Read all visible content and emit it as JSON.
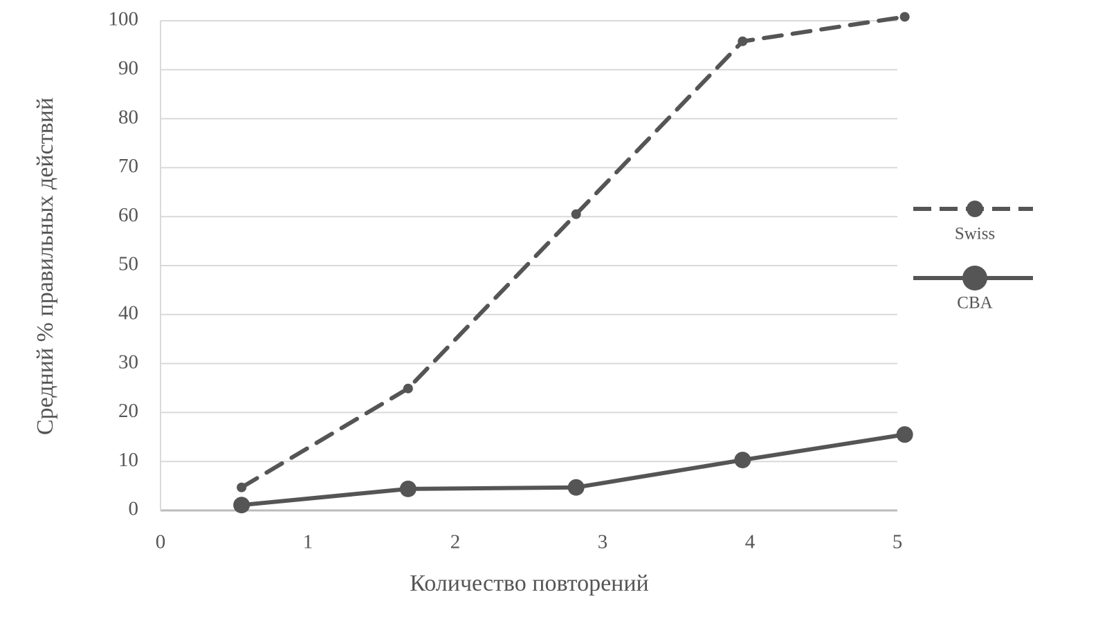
{
  "chart_data": {
    "type": "line",
    "x_label": "Количество повторений",
    "y_label": "Средний % правильных действий",
    "x": [
      0.55,
      1.68,
      2.82,
      3.95,
      5.05
    ],
    "series": [
      {
        "name": "Swiss",
        "color": "#555555",
        "line_style": "dashed",
        "values": [
          4.7,
          24.9,
          60.5,
          95.8,
          100.8
        ]
      },
      {
        "name": "CBA",
        "color": "#555555",
        "line_style": "solid",
        "values": [
          1.1,
          4.4,
          4.7,
          10.3,
          15.5
        ]
      }
    ],
    "xlim": [
      0,
      5
    ],
    "xticks": [
      0,
      1,
      2,
      3,
      4,
      5
    ],
    "ylim": [
      0,
      100
    ],
    "yticks": [
      0,
      10,
      20,
      30,
      40,
      50,
      60,
      70,
      80,
      90,
      100
    ],
    "grid": true,
    "legend": "right"
  }
}
